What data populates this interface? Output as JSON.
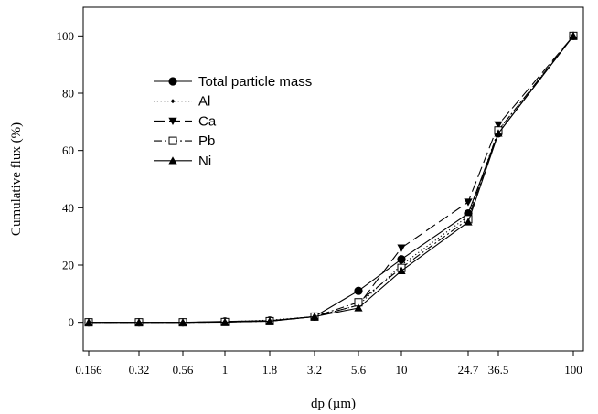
{
  "chart_data": {
    "type": "line",
    "title": "",
    "xlabel": "dp (µm)",
    "ylabel": "Cumulative flux (%)",
    "ylim": [
      -10,
      110
    ],
    "yticks": [
      0,
      20,
      40,
      60,
      80,
      100
    ],
    "x_scale": "categorical",
    "x_tick_labels": [
      "0.166",
      "0.32",
      "0.56",
      "1",
      "1.8",
      "3.2",
      "5.6",
      "10",
      "24.7",
      "36.5",
      "100"
    ],
    "x": [
      0.166,
      0.32,
      0.56,
      1,
      1.8,
      3.2,
      5.6,
      10,
      24.7,
      36.5,
      100
    ],
    "grid": false,
    "legend_position": "upper-left",
    "series": [
      {
        "name": "Total particle mass",
        "marker": "circle",
        "line_style": "solid",
        "color": "#000000",
        "values": [
          0,
          0,
          0,
          0.3,
          0.6,
          2,
          11,
          22,
          38,
          66,
          100
        ]
      },
      {
        "name": "Al",
        "marker": "diamond",
        "line_style": "dotted",
        "color": "#000000",
        "values": [
          0,
          0,
          0,
          0.2,
          0.8,
          2,
          6,
          20,
          37,
          67,
          100
        ]
      },
      {
        "name": "Ca",
        "marker": "triangle-down",
        "line_style": "long-dash",
        "color": "#000000",
        "values": [
          0,
          0,
          0,
          0.2,
          0.5,
          2,
          6,
          26,
          42,
          69,
          100
        ]
      },
      {
        "name": "Pb",
        "marker": "square-open",
        "line_style": "dash-dot",
        "color": "#000000",
        "values": [
          0,
          0,
          0,
          0.1,
          0.4,
          2,
          7,
          19,
          36,
          67,
          100
        ]
      },
      {
        "name": "Ni",
        "marker": "triangle-up",
        "line_style": "solid",
        "color": "#000000",
        "values": [
          0,
          0,
          0,
          0.1,
          0.4,
          2,
          5,
          18,
          35,
          66,
          100
        ]
      }
    ]
  }
}
